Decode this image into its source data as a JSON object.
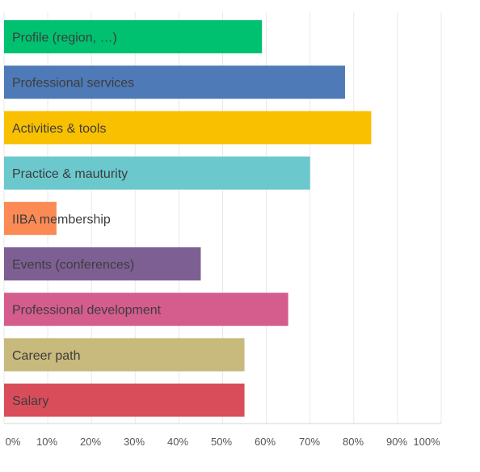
{
  "chart_data": {
    "type": "bar",
    "orientation": "horizontal",
    "categories": [
      "Profile (region, …)",
      "Professional services",
      "Activities & tools",
      "Practice & mauturity",
      "IIBA membership",
      "Events (conferences)",
      "Professional development",
      "Career path",
      "Salary"
    ],
    "values": [
      59,
      78,
      84,
      70,
      12,
      45,
      65,
      55,
      55
    ],
    "colors": [
      "#00c170",
      "#4e7ab7",
      "#f9c000",
      "#6bc9cd",
      "#fc8a55",
      "#7e5f93",
      "#d45d8e",
      "#c8b97c",
      "#d94d5a"
    ],
    "xlim": [
      0,
      100
    ],
    "x_ticks": [
      "0%",
      "10%",
      "20%",
      "30%",
      "40%",
      "50%",
      "60%",
      "70%",
      "80%",
      "90%",
      "100%"
    ],
    "grid": true,
    "title": "",
    "xlabel": "",
    "ylabel": ""
  }
}
